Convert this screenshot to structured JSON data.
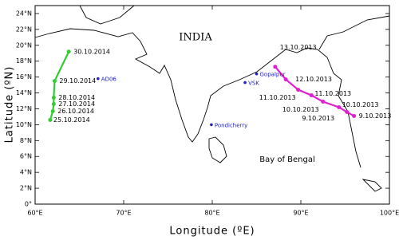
{
  "chart_data": {
    "type": "map",
    "x_label": "Longitude (ºE)",
    "y_label": "Latitude (ºN)",
    "xlim": [
      60,
      100
    ],
    "ylim": [
      0,
      25
    ],
    "xticks": [
      {
        "value": 60,
        "label": "60°E"
      },
      {
        "value": 70,
        "label": "70°E"
      },
      {
        "value": 80,
        "label": "80°E"
      },
      {
        "value": 90,
        "label": "90°E"
      },
      {
        "value": 100,
        "label": "100°E"
      }
    ],
    "yticks": [
      {
        "value": 0,
        "label": "0°"
      },
      {
        "value": 2,
        "label": "2°N"
      },
      {
        "value": 4,
        "label": "4°N"
      },
      {
        "value": 6,
        "label": "6°N"
      },
      {
        "value": 8,
        "label": "8°N"
      },
      {
        "value": 10,
        "label": "10°N"
      },
      {
        "value": 12,
        "label": "12°N"
      },
      {
        "value": 14,
        "label": "14°N"
      },
      {
        "value": 16,
        "label": "16°N"
      },
      {
        "value": 18,
        "label": "18°N"
      },
      {
        "value": 20,
        "label": "20°N"
      },
      {
        "value": 22,
        "label": "22°N"
      },
      {
        "value": 24,
        "label": "24°N"
      }
    ],
    "annotations": [
      "INDIA",
      "Bay of Bengal"
    ],
    "series": [
      {
        "color": "#33cc33",
        "x": [
          61.7,
          62.0,
          62.1,
          62.1,
          62.2,
          63.8
        ],
        "y": [
          10.6,
          11.7,
          12.6,
          13.4,
          15.5,
          19.2
        ],
        "labels": [
          "25.10.2014",
          "26.10.2014",
          "27.10.2014",
          "28.10.2014",
          "29.10.2014",
          "30.10.2014"
        ]
      },
      {
        "color": "#e020d0",
        "x": [
          87.1,
          88.3,
          89.7,
          91.2,
          92.5,
          94.3,
          95.2,
          96.0
        ],
        "y": [
          17.3,
          15.7,
          14.4,
          13.7,
          12.9,
          12.2,
          11.6,
          11.1
        ],
        "labels": [
          "13.10.2013",
          "12.10.2013",
          "11.10.2013",
          "11.10.2013",
          "10.10.2013",
          "10.10.2013",
          "9.10.2013",
          "9.10.2013"
        ]
      }
    ],
    "stations": {
      "color": "#2020c0",
      "names": [
        "AD06",
        "VSK",
        "Gopalpur",
        "Pondicherry"
      ],
      "x": [
        67.1,
        83.7,
        85.0,
        79.9
      ],
      "y": [
        15.8,
        15.3,
        16.4,
        10.0
      ]
    }
  }
}
